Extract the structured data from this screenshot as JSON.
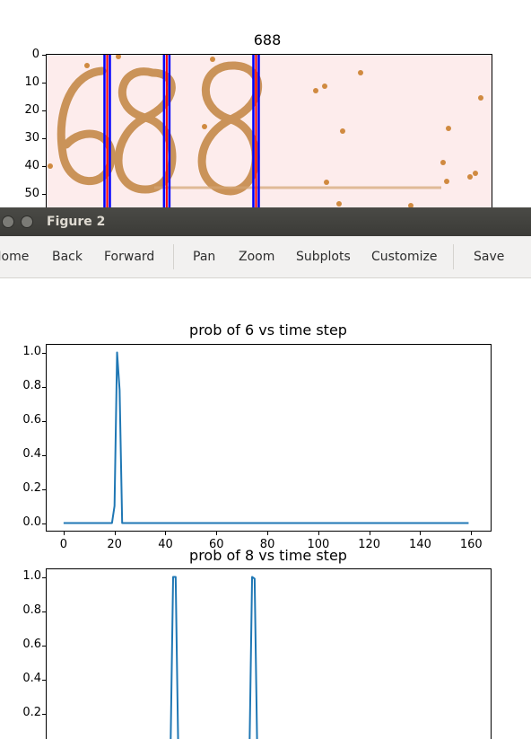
{
  "top_figure": {
    "title": "688",
    "yticks": [
      "0",
      "10",
      "20",
      "30",
      "40",
      "50"
    ],
    "image_alt": "handwritten-digits-688",
    "marker_lines_x": [
      16.5,
      32.5,
      56.5
    ],
    "marker_line_colors": {
      "outer": "#0000ff",
      "inner": "#ff0000"
    },
    "image_bg": "#fdecec",
    "ink_color": "#c58a4a"
  },
  "window": {
    "title": "Figure 2"
  },
  "toolbar": {
    "home_label": "Home",
    "back_label": "Back",
    "forward_label": "Forward",
    "pan_label": "Pan",
    "zoom_label": "Zoom",
    "subplots_label": "Subplots",
    "customize_label": "Customize",
    "save_label": "Save"
  },
  "chart_data": [
    {
      "type": "line",
      "title": "prob of  6 vs time step",
      "xlim": [
        -7,
        168
      ],
      "ylim": [
        -0.05,
        1.05
      ],
      "xticks": [
        0,
        20,
        40,
        60,
        80,
        100,
        120,
        140,
        160
      ],
      "yticks": [
        0.0,
        0.2,
        0.4,
        0.6,
        0.8,
        1.0
      ],
      "color": "#1f77b4",
      "series": [
        {
          "x": [
            0,
            19,
            20,
            21,
            22,
            23,
            159
          ],
          "y": [
            0,
            0,
            0.1,
            1.0,
            0.78,
            0,
            0
          ]
        }
      ]
    },
    {
      "type": "line",
      "title": "prob of  8 vs time step",
      "xlim": [
        -7,
        168
      ],
      "ylim": [
        -0.05,
        1.05
      ],
      "yticks": [
        0.2,
        0.4,
        0.6,
        0.8,
        1.0
      ],
      "color": "#1f77b4",
      "series": [
        {
          "x": [
            0,
            42,
            43,
            44,
            45,
            46,
            73,
            74,
            75,
            76,
            77,
            159
          ],
          "y": [
            0,
            0,
            1.0,
            1.0,
            0,
            0,
            0,
            1.0,
            0.99,
            0,
            0,
            0
          ]
        }
      ]
    }
  ]
}
